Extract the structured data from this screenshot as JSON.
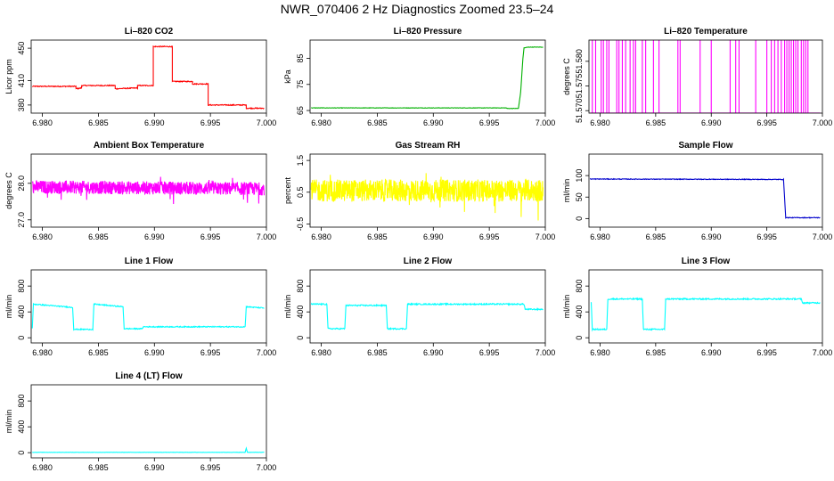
{
  "title": "NWR_070406  2 Hz Diagnostics Zoomed 23.5–24",
  "chart_data": [
    {
      "type": "line",
      "title": "Li–820 CO2",
      "ylabel": "Licor ppm",
      "color": "#ff0000",
      "xlim": [
        6.979,
        7.0
      ],
      "ylim": [
        370,
        460
      ],
      "xticks": [
        6.98,
        6.985,
        6.99,
        6.995,
        7.0
      ],
      "xtick_labels": [
        "6.980",
        "6.985",
        "6.990",
        "6.995",
        "7.000"
      ],
      "yticks": [
        380,
        410,
        450
      ],
      "ytick_labels": [
        "380",
        "410",
        "450"
      ],
      "x": [
        6.9791,
        6.983,
        6.983,
        6.9835,
        6.9835,
        6.9865,
        6.9865,
        6.9885,
        6.9885,
        6.9899,
        6.9899,
        6.9916,
        6.9916,
        6.9934,
        6.9934,
        6.9948,
        6.9948,
        6.9982,
        6.9982,
        6.9998
      ],
      "y": [
        403,
        403,
        400,
        401,
        404,
        404,
        400,
        401,
        404,
        404,
        452,
        452,
        409,
        409,
        406,
        406,
        380,
        380,
        376,
        376
      ]
    },
    {
      "type": "line",
      "title": "Li–820 Pressure",
      "ylabel": "kPa",
      "color": "#00b000",
      "xlim": [
        6.979,
        7.0
      ],
      "ylim": [
        64,
        92
      ],
      "xticks": [
        6.98,
        6.985,
        6.99,
        6.995,
        7.0
      ],
      "xtick_labels": [
        "6.980",
        "6.985",
        "6.990",
        "6.995",
        "7.000"
      ],
      "yticks": [
        65,
        75,
        85
      ],
      "ytick_labels": [
        "65",
        "75",
        "85"
      ],
      "x": [
        6.9791,
        6.9965,
        6.9966,
        6.9976,
        6.9978,
        6.998,
        6.9981,
        6.9985,
        6.9998
      ],
      "y": [
        66,
        66,
        65.8,
        65.8,
        72,
        85,
        89,
        89.3,
        89.3
      ]
    },
    {
      "type": "line",
      "title": "Li–820 Temperature",
      "ylabel": "degrees C",
      "color": "#ff00ff",
      "xlim": [
        6.979,
        7.0
      ],
      "ylim": [
        51.5695,
        51.5843
      ],
      "xticks": [
        6.98,
        6.985,
        6.99,
        6.995,
        7.0
      ],
      "xtick_labels": [
        "6.980",
        "6.985",
        "6.990",
        "6.995",
        "7.000"
      ],
      "yticks": [
        51.57,
        51.575,
        51.58
      ],
      "ytick_labels": [
        "51.570",
        "51.575",
        "51.580"
      ],
      "x": [
        6.9791,
        6.9998
      ],
      "y": [
        51.5695,
        51.5695
      ]
    },
    {
      "type": "line",
      "title": "Ambient Box Temperature",
      "ylabel": "degrees C",
      "color": "#ff00ff",
      "xlim": [
        6.979,
        7.0
      ],
      "ylim": [
        26.8,
        28.8
      ],
      "xticks": [
        6.98,
        6.985,
        6.99,
        6.995,
        7.0
      ],
      "xtick_labels": [
        "6.980",
        "6.985",
        "6.990",
        "6.995",
        "7.000"
      ],
      "yticks": [
        27.0,
        28.0
      ],
      "ytick_labels": [
        "27.0",
        "28.0"
      ],
      "x": [
        6.9791,
        6.9998
      ],
      "y": [
        27.9,
        27.85
      ]
    },
    {
      "type": "line",
      "title": "Gas Stream RH",
      "ylabel": "percent",
      "color": "#ffff00",
      "xlim": [
        6.979,
        7.0
      ],
      "ylim": [
        -0.6,
        1.7
      ],
      "xticks": [
        6.98,
        6.985,
        6.99,
        6.995,
        7.0
      ],
      "xtick_labels": [
        "6.980",
        "6.985",
        "6.990",
        "6.995",
        "7.000"
      ],
      "yticks": [
        -0.5,
        0.5,
        1.5
      ],
      "ytick_labels": [
        "-0.5",
        "0.5",
        "1.5"
      ],
      "x": [
        6.9791,
        6.9998
      ],
      "y": [
        0.55,
        0.55
      ]
    },
    {
      "type": "line",
      "title": "Sample Flow",
      "ylabel": "ml/min",
      "color": "#0000cc",
      "xlim": [
        6.979,
        7.0
      ],
      "ylim": [
        -20,
        150
      ],
      "xticks": [
        6.98,
        6.985,
        6.99,
        6.995,
        7.0
      ],
      "xtick_labels": [
        "6.980",
        "6.985",
        "6.990",
        "6.995",
        "7.000"
      ],
      "yticks": [
        0,
        50,
        100
      ],
      "ytick_labels": [
        "0",
        "50",
        "100"
      ],
      "x": [
        6.9791,
        6.9965,
        6.9967,
        6.9998
      ],
      "y": [
        92,
        91,
        2,
        2
      ]
    },
    {
      "type": "line",
      "title": "Line 1 Flow",
      "ylabel": "ml/min",
      "color": "#00ffff",
      "xlim": [
        6.979,
        7.0
      ],
      "ylim": [
        -80,
        1050
      ],
      "xticks": [
        6.98,
        6.985,
        6.99,
        6.995,
        7.0
      ],
      "xtick_labels": [
        "6.980",
        "6.985",
        "6.990",
        "6.995",
        "7.000"
      ],
      "yticks": [
        0,
        400,
        800
      ],
      "ytick_labels": [
        "0",
        "400",
        "800"
      ],
      "x": [
        6.9791,
        6.9792,
        6.9827,
        6.9828,
        6.9845,
        6.9846,
        6.9872,
        6.9873,
        6.9889,
        6.989,
        6.9981,
        6.9982,
        6.9998
      ],
      "y": [
        150,
        520,
        470,
        130,
        130,
        520,
        480,
        140,
        140,
        170,
        170,
        480,
        460
      ]
    },
    {
      "type": "line",
      "title": "Line 2 Flow",
      "ylabel": "ml/min",
      "color": "#00ffff",
      "xlim": [
        6.979,
        7.0
      ],
      "ylim": [
        -80,
        1050
      ],
      "xticks": [
        6.98,
        6.985,
        6.99,
        6.995,
        7.0
      ],
      "xtick_labels": [
        "6.980",
        "6.985",
        "6.990",
        "6.995",
        "7.000"
      ],
      "yticks": [
        0,
        400,
        800
      ],
      "ytick_labels": [
        "0",
        "400",
        "800"
      ],
      "x": [
        6.9791,
        6.9805,
        6.9806,
        6.9821,
        6.9822,
        6.9858,
        6.9859,
        6.9876,
        6.9877,
        6.9981,
        6.9982,
        6.9998
      ],
      "y": [
        520,
        520,
        140,
        140,
        500,
        500,
        140,
        140,
        520,
        520,
        440,
        440
      ]
    },
    {
      "type": "line",
      "title": "Line 3 Flow",
      "ylabel": "ml/min",
      "color": "#00ffff",
      "xlim": [
        6.979,
        7.0
      ],
      "ylim": [
        -80,
        1050
      ],
      "xticks": [
        6.98,
        6.985,
        6.99,
        6.995,
        7.0
      ],
      "xtick_labels": [
        "6.980",
        "6.985",
        "6.990",
        "6.995",
        "7.000"
      ],
      "yticks": [
        0,
        400,
        800
      ],
      "ytick_labels": [
        "0",
        "400",
        "800"
      ],
      "x": [
        6.9792,
        6.9793,
        6.9806,
        6.9807,
        6.9838,
        6.9839,
        6.9858,
        6.9859,
        6.9981,
        6.9982,
        6.9998
      ],
      "y": [
        560,
        130,
        130,
        600,
        600,
        130,
        130,
        600,
        600,
        540,
        540
      ]
    },
    {
      "type": "line",
      "title": "Line 4 (LT) Flow",
      "ylabel": "ml/min",
      "color": "#00ffff",
      "xlim": [
        6.979,
        7.0
      ],
      "ylim": [
        -80,
        1050
      ],
      "xticks": [
        6.98,
        6.985,
        6.99,
        6.995,
        7.0
      ],
      "xtick_labels": [
        "6.980",
        "6.985",
        "6.990",
        "6.995",
        "7.000"
      ],
      "yticks": [
        0,
        400,
        800
      ],
      "ytick_labels": [
        "0",
        "400",
        "800"
      ],
      "x": [
        6.9791,
        6.9981,
        6.9982,
        6.9983,
        6.9998
      ],
      "y": [
        5,
        5,
        70,
        5,
        5
      ]
    }
  ]
}
